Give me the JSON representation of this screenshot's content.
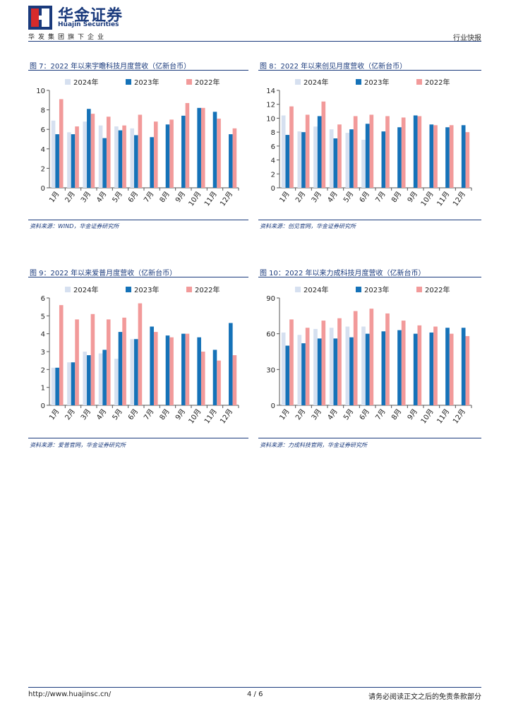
{
  "header": {
    "brand_cn": "华金证券",
    "brand_en": "Huajin Securities",
    "group_line": "华发集团旗下企业",
    "report_type": "行业快报"
  },
  "colors": {
    "s2024": "#d6e0f0",
    "s2023": "#1572b8",
    "s2022": "#f29a9a",
    "brand": "#1a3a7c"
  },
  "figures": [
    {
      "title": "图 7：2022 年以来宇瞻科技月度营收（亿新台币）",
      "source": "资料来源：WIND，华金证券研究所",
      "chart_data": {
        "type": "bar",
        "categories": [
          "1月",
          "2月",
          "3月",
          "4月",
          "5月",
          "6月",
          "7月",
          "8月",
          "9月",
          "10月",
          "11月",
          "12月"
        ],
        "series": [
          {
            "name": "2024年",
            "values": [
              6.9,
              5.7,
              6.8,
              6.4,
              6.3,
              6.1,
              null,
              null,
              null,
              null,
              null,
              null
            ]
          },
          {
            "name": "2023年",
            "values": [
              5.5,
              5.5,
              8.1,
              5.1,
              5.9,
              5.4,
              5.2,
              6.5,
              7.4,
              8.2,
              7.8,
              5.5
            ]
          },
          {
            "name": "2022年",
            "values": [
              9.1,
              6.3,
              7.6,
              7.3,
              6.4,
              7.5,
              6.8,
              7.0,
              8.7,
              8.2,
              7.1,
              6.1
            ]
          }
        ],
        "ylim": [
          0,
          10
        ],
        "yticks": [
          0,
          2,
          4,
          6,
          8,
          10
        ]
      }
    },
    {
      "title": "图 8：2022 年以来创见月度营收（亿新台币）",
      "source": "资料来源：创见官网，华金证券研究所",
      "chart_data": {
        "type": "bar",
        "categories": [
          "1月",
          "2月",
          "3月",
          "4月",
          "5月",
          "6月",
          "7月",
          "8月",
          "9月",
          "10月",
          "11月",
          "12月"
        ],
        "series": [
          {
            "name": "2024年",
            "values": [
              10.4,
              8.1,
              8.8,
              8.4,
              7.9,
              6.9,
              null,
              null,
              null,
              null,
              null,
              null
            ]
          },
          {
            "name": "2023年",
            "values": [
              7.6,
              8.0,
              10.3,
              7.1,
              8.4,
              9.2,
              8.1,
              8.7,
              10.4,
              9.1,
              8.7,
              9.0
            ]
          },
          {
            "name": "2022年",
            "values": [
              11.7,
              10.5,
              12.4,
              9.1,
              10.3,
              10.5,
              10.3,
              10.1,
              10.3,
              9.0,
              9.0,
              8.0
            ]
          }
        ],
        "ylim": [
          0,
          14
        ],
        "yticks": [
          0,
          2,
          4,
          6,
          8,
          10,
          12,
          14
        ]
      }
    },
    {
      "title": "图 9：2022 年以来爱普月度营收（亿新台币）",
      "source": "资料来源：爱普官网，华金证券研究所",
      "chart_data": {
        "type": "bar",
        "categories": [
          "1月",
          "2月",
          "3月",
          "4月",
          "5月",
          "6月",
          "7月",
          "8月",
          "9月",
          "10月",
          "11月",
          "12月"
        ],
        "series": [
          {
            "name": "2024年",
            "values": [
              2.1,
              2.4,
              3.0,
              2.9,
              2.6,
              3.7,
              null,
              null,
              null,
              null,
              null,
              null
            ]
          },
          {
            "name": "2023年",
            "values": [
              2.1,
              2.4,
              2.8,
              3.1,
              4.1,
              3.7,
              4.4,
              3.9,
              4.0,
              3.8,
              3.1,
              4.6
            ]
          },
          {
            "name": "2022年",
            "values": [
              5.6,
              4.8,
              5.1,
              4.8,
              4.9,
              5.7,
              4.1,
              3.8,
              4.0,
              3.0,
              2.5,
              2.8
            ]
          }
        ],
        "ylim": [
          0,
          6
        ],
        "yticks": [
          0,
          1,
          2,
          3,
          4,
          5,
          6
        ]
      }
    },
    {
      "title": "图 10：2022 年以来力成科技月度营收（亿新台币）",
      "source": "资料来源：力成科技官网，华金证券研究所",
      "chart_data": {
        "type": "bar",
        "categories": [
          "1月",
          "2月",
          "3月",
          "4月",
          "5月",
          "6月",
          "7月",
          "8月",
          "9月",
          "10月",
          "11月",
          "12月"
        ],
        "series": [
          {
            "name": "2024年",
            "values": [
              61,
              59,
              64,
              65,
              66,
              66,
              null,
              null,
              null,
              null,
              null,
              null
            ]
          },
          {
            "name": "2023年",
            "values": [
              50,
              52,
              56,
              56,
              57,
              60,
              62,
              63,
              60,
              61,
              65,
              65
            ]
          },
          {
            "name": "2022年",
            "values": [
              72,
              65,
              71,
              73,
              79,
              81,
              77,
              71,
              67,
              66,
              60,
              58
            ]
          }
        ],
        "ylim": [
          0,
          90
        ],
        "yticks": [
          0,
          30,
          60,
          90
        ]
      }
    }
  ],
  "footer": {
    "url": "http://www.huajinsc.cn/",
    "page": "4 / 6",
    "disclaimer": "请务必阅读正文之后的免责条款部分"
  }
}
